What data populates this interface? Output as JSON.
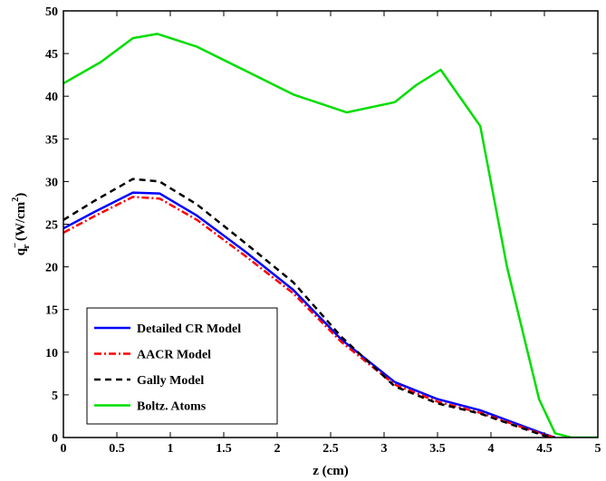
{
  "chart_data": {
    "type": "line",
    "xlabel": "z (cm)",
    "ylabel": {
      "main": "q",
      "sub": "r",
      "sup": "−",
      "unit": " (W/cm",
      "unit_sup": "2",
      "close": ")"
    },
    "xlim": [
      0,
      5
    ],
    "ylim": [
      0,
      50
    ],
    "x_ticks": [
      0,
      0.5,
      1,
      1.5,
      2,
      2.5,
      3,
      3.5,
      4,
      4.5,
      5
    ],
    "x_tick_labels": [
      "0",
      "0.5",
      "1",
      "1.5",
      "2",
      "2.5",
      "3",
      "3.5",
      "4",
      "4.5",
      "5"
    ],
    "y_ticks": [
      0,
      5,
      10,
      15,
      20,
      25,
      30,
      35,
      40,
      45,
      50
    ],
    "y_tick_labels": [
      "0",
      "5",
      "10",
      "15",
      "20",
      "25",
      "30",
      "35",
      "40",
      "45",
      "50"
    ],
    "grid": false,
    "legend_position": "bottom-left",
    "series": [
      {
        "name": "Detailed CR Model",
        "color": "#0000ff",
        "dash": "solid",
        "points": [
          [
            0,
            24.5
          ],
          [
            0.3,
            26.5
          ],
          [
            0.65,
            28.7
          ],
          [
            0.9,
            28.6
          ],
          [
            1.25,
            26.0
          ],
          [
            1.7,
            21.8
          ],
          [
            2.15,
            17.3
          ],
          [
            2.6,
            11.5
          ],
          [
            3.1,
            6.5
          ],
          [
            3.5,
            4.5
          ],
          [
            3.9,
            3.2
          ],
          [
            4.2,
            1.8
          ],
          [
            4.5,
            0.4
          ],
          [
            4.6,
            0.0
          ]
        ]
      },
      {
        "name": "AACR Model",
        "color": "#ff0000",
        "dash": "dashdot",
        "points": [
          [
            0,
            24.0
          ],
          [
            0.3,
            26.0
          ],
          [
            0.65,
            28.2
          ],
          [
            0.9,
            28.0
          ],
          [
            1.25,
            25.5
          ],
          [
            1.7,
            21.3
          ],
          [
            2.15,
            16.9
          ],
          [
            2.6,
            11.2
          ],
          [
            3.1,
            6.2
          ],
          [
            3.5,
            4.2
          ],
          [
            3.9,
            2.9
          ],
          [
            4.2,
            1.6
          ],
          [
            4.5,
            0.3
          ],
          [
            4.6,
            0.0
          ]
        ]
      },
      {
        "name": "Gally Model",
        "color": "#000000",
        "dash": "dashed",
        "points": [
          [
            0,
            25.5
          ],
          [
            0.3,
            27.8
          ],
          [
            0.65,
            30.3
          ],
          [
            0.9,
            30.0
          ],
          [
            1.25,
            27.3
          ],
          [
            1.7,
            22.8
          ],
          [
            2.15,
            18.2
          ],
          [
            2.6,
            11.8
          ],
          [
            3.1,
            6.0
          ],
          [
            3.5,
            4.0
          ],
          [
            3.9,
            2.8
          ],
          [
            4.2,
            1.5
          ],
          [
            4.5,
            0.2
          ],
          [
            4.6,
            0.0
          ]
        ]
      },
      {
        "name": "Boltz. Atoms",
        "color": "#00dd00",
        "dash": "solid",
        "points": [
          [
            0,
            41.5
          ],
          [
            0.35,
            44.0
          ],
          [
            0.65,
            46.8
          ],
          [
            0.88,
            47.3
          ],
          [
            1.25,
            45.8
          ],
          [
            1.7,
            43.0
          ],
          [
            2.15,
            40.2
          ],
          [
            2.65,
            38.1
          ],
          [
            3.1,
            39.3
          ],
          [
            3.3,
            41.3
          ],
          [
            3.53,
            43.1
          ],
          [
            3.9,
            36.5
          ],
          [
            4.15,
            20.0
          ],
          [
            4.45,
            4.5
          ],
          [
            4.6,
            0.5
          ],
          [
            4.75,
            0.0
          ],
          [
            5.0,
            0.0
          ]
        ]
      }
    ]
  }
}
